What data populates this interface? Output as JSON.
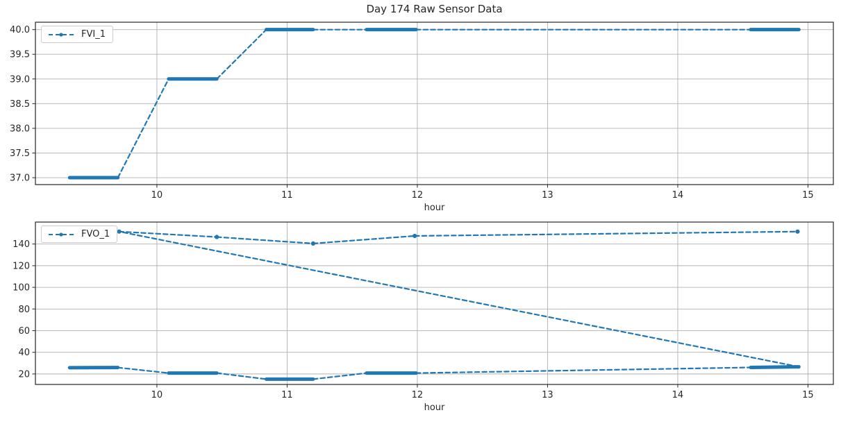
{
  "figure": {
    "background": "#ffffff"
  },
  "colors": {
    "series": "#1f77b4",
    "grid": "#b0b0b0",
    "spine": "#262626",
    "text": "#262626",
    "background": "#ffffff"
  },
  "chart_data": [
    {
      "type": "line",
      "title": "Day 174 Raw Sensor Data",
      "xlabel": "hour",
      "legend": "FVI_1",
      "legend_position": "upper left",
      "line_style": "dashed",
      "marker": "dot",
      "grid": true,
      "xlim": [
        9.067,
        15.195
      ],
      "ylim": [
        36.86,
        40.15
      ],
      "xticks": [
        10,
        11,
        12,
        13,
        14,
        15
      ],
      "xtick_labels": [
        "10",
        "11",
        "12",
        "13",
        "14",
        "15"
      ],
      "yticks": [
        37.0,
        37.5,
        38.0,
        38.5,
        39.0,
        39.5,
        40.0
      ],
      "ytick_labels": [
        "37.0",
        "37.5",
        "38.0",
        "38.5",
        "39.0",
        "39.5",
        "40.0"
      ],
      "segments": [
        {
          "x1": 9.33,
          "y1": 37.0,
          "x2": 9.7,
          "y2": 37.0,
          "style": "dense"
        },
        {
          "x1": 9.7,
          "y1": 37.0,
          "x2": 10.09,
          "y2": 39.0,
          "style": "dashed"
        },
        {
          "x1": 10.09,
          "y1": 39.0,
          "x2": 10.46,
          "y2": 39.0,
          "style": "dense"
        },
        {
          "x1": 10.46,
          "y1": 39.0,
          "x2": 10.84,
          "y2": 40.0,
          "style": "dashed"
        },
        {
          "x1": 10.84,
          "y1": 40.0,
          "x2": 11.2,
          "y2": 40.0,
          "style": "dense"
        },
        {
          "x1": 11.2,
          "y1": 40.0,
          "x2": 11.61,
          "y2": 40.0,
          "style": "dashed"
        },
        {
          "x1": 11.61,
          "y1": 40.0,
          "x2": 11.99,
          "y2": 40.0,
          "style": "dense"
        },
        {
          "x1": 11.99,
          "y1": 40.0,
          "x2": 14.56,
          "y2": 40.0,
          "style": "dashed"
        },
        {
          "x1": 14.56,
          "y1": 40.0,
          "x2": 14.93,
          "y2": 40.0,
          "style": "dense"
        }
      ],
      "markers": []
    },
    {
      "type": "line",
      "title": "",
      "xlabel": "hour",
      "legend": "FVO_1",
      "legend_position": "upper left",
      "line_style": "dashed",
      "marker": "dot",
      "grid": true,
      "xlim": [
        9.067,
        15.195
      ],
      "ylim": [
        10.3,
        160.3
      ],
      "xticks": [
        10,
        11,
        12,
        13,
        14,
        15
      ],
      "xtick_labels": [
        "10",
        "11",
        "12",
        "13",
        "14",
        "15"
      ],
      "yticks": [
        20,
        40,
        60,
        80,
        100,
        120,
        140
      ],
      "ytick_labels": [
        "20",
        "40",
        "60",
        "80",
        "100",
        "120",
        "140"
      ],
      "segments": [
        {
          "x1": 9.33,
          "y1": 25.8,
          "x2": 9.7,
          "y2": 25.9,
          "style": "dense"
        },
        {
          "x1": 9.7,
          "y1": 25.9,
          "x2": 10.09,
          "y2": 20.8,
          "style": "dashed"
        },
        {
          "x1": 10.09,
          "y1": 20.8,
          "x2": 10.46,
          "y2": 20.8,
          "style": "dense"
        },
        {
          "x1": 10.46,
          "y1": 20.8,
          "x2": 10.84,
          "y2": 15.2,
          "style": "dashed"
        },
        {
          "x1": 10.84,
          "y1": 15.2,
          "x2": 11.2,
          "y2": 15.2,
          "style": "dense"
        },
        {
          "x1": 11.2,
          "y1": 15.2,
          "x2": 11.61,
          "y2": 20.8,
          "style": "dashed"
        },
        {
          "x1": 11.61,
          "y1": 20.8,
          "x2": 11.99,
          "y2": 20.8,
          "style": "dense"
        },
        {
          "x1": 11.99,
          "y1": 20.8,
          "x2": 14.56,
          "y2": 26.0,
          "style": "dashed"
        },
        {
          "x1": 14.56,
          "y1": 26.0,
          "x2": 14.93,
          "y2": 26.6,
          "style": "dense"
        },
        {
          "x1": 14.93,
          "y1": 26.6,
          "x2": 9.71,
          "y2": 151.5,
          "style": "dashed"
        },
        {
          "x1": 9.71,
          "y1": 151.5,
          "x2": 10.46,
          "y2": 146.5,
          "style": "dashed"
        },
        {
          "x1": 10.46,
          "y1": 146.5,
          "x2": 11.2,
          "y2": 140.5,
          "style": "dashed"
        },
        {
          "x1": 11.2,
          "y1": 140.5,
          "x2": 11.98,
          "y2": 147.5,
          "style": "dashed"
        },
        {
          "x1": 11.98,
          "y1": 147.5,
          "x2": 14.92,
          "y2": 151.5,
          "style": "dashed"
        }
      ],
      "markers": [
        [
          9.71,
          151.5
        ],
        [
          10.46,
          146.5
        ],
        [
          11.2,
          140.5
        ],
        [
          11.98,
          147.5
        ],
        [
          14.92,
          151.5
        ]
      ]
    }
  ]
}
